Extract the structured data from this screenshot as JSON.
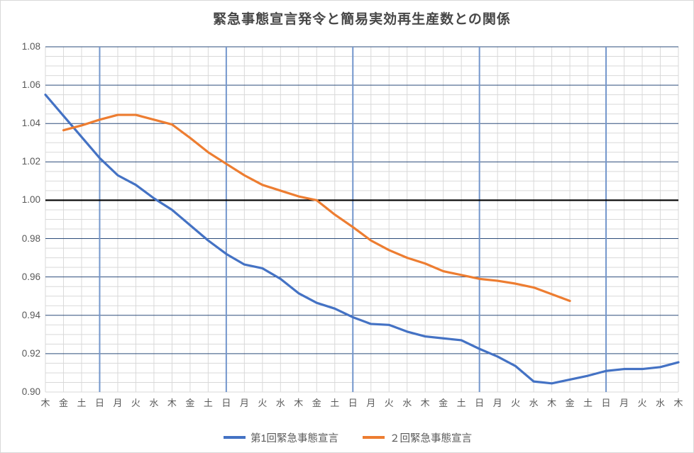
{
  "chart_data": {
    "type": "line",
    "title": "緊急事態宣言発令と簡易実効再生産数との関係",
    "xlabel": "",
    "ylabel": "",
    "categories": [
      "木",
      "金",
      "土",
      "日",
      "月",
      "火",
      "水",
      "木",
      "金",
      "土",
      "日",
      "月",
      "火",
      "水",
      "木",
      "金",
      "土",
      "日",
      "月",
      "火",
      "水",
      "木",
      "金",
      "土",
      "日",
      "月",
      "火",
      "水",
      "木",
      "金",
      "土",
      "日",
      "月",
      "火",
      "水",
      "木"
    ],
    "series": [
      {
        "name": "第1回緊急事態宣言",
        "color": "#4472C4",
        "values": [
          1.055,
          1.044,
          1.033,
          1.022,
          1.013,
          1.008,
          1.001,
          0.995,
          0.987,
          0.979,
          0.972,
          0.9665,
          0.9645,
          0.959,
          0.9515,
          0.9465,
          0.9435,
          0.939,
          0.9355,
          0.935,
          0.9315,
          0.929,
          0.928,
          0.927,
          0.9225,
          0.9185,
          0.9135,
          0.9055,
          0.9045,
          0.9065,
          0.9085,
          0.911,
          0.912,
          0.912,
          0.913,
          0.9155
        ]
      },
      {
        "name": "２回緊急事態宣言",
        "color": "#ED7D31",
        "values": [
          null,
          1.0365,
          1.039,
          1.042,
          1.0445,
          1.0445,
          1.042,
          1.0395,
          1.0325,
          1.025,
          1.019,
          1.013,
          1.008,
          1.005,
          1.002,
          1.0,
          0.9925,
          0.986,
          0.979,
          0.974,
          0.97,
          0.967,
          0.963,
          0.961,
          0.959,
          0.958,
          0.9565,
          0.9545,
          0.951,
          0.9475,
          null,
          null,
          null,
          null,
          null,
          null
        ]
      }
    ],
    "ylim": [
      0.9,
      1.08
    ],
    "yticks": [
      "1.08",
      "1.06",
      "1.04",
      "1.02",
      "1.00",
      "0.98",
      "0.96",
      "0.94",
      "0.92",
      "0.90"
    ],
    "y_major_step": 0.02,
    "y_minor_step": 0.005,
    "baseline": 1.0,
    "weekly_major_vertical_indices": [
      3,
      10,
      17,
      24,
      31
    ],
    "grid": true,
    "legend_position": "bottom",
    "colors": {
      "major_gridline": "#2E4D7B",
      "minor_gridline": "#D9D9D9",
      "weekly_gridline": "#7396CC",
      "baseline": "#000000",
      "axis_label": "#595959",
      "title": "#474747",
      "chart_border": "#D9D9D9"
    }
  }
}
